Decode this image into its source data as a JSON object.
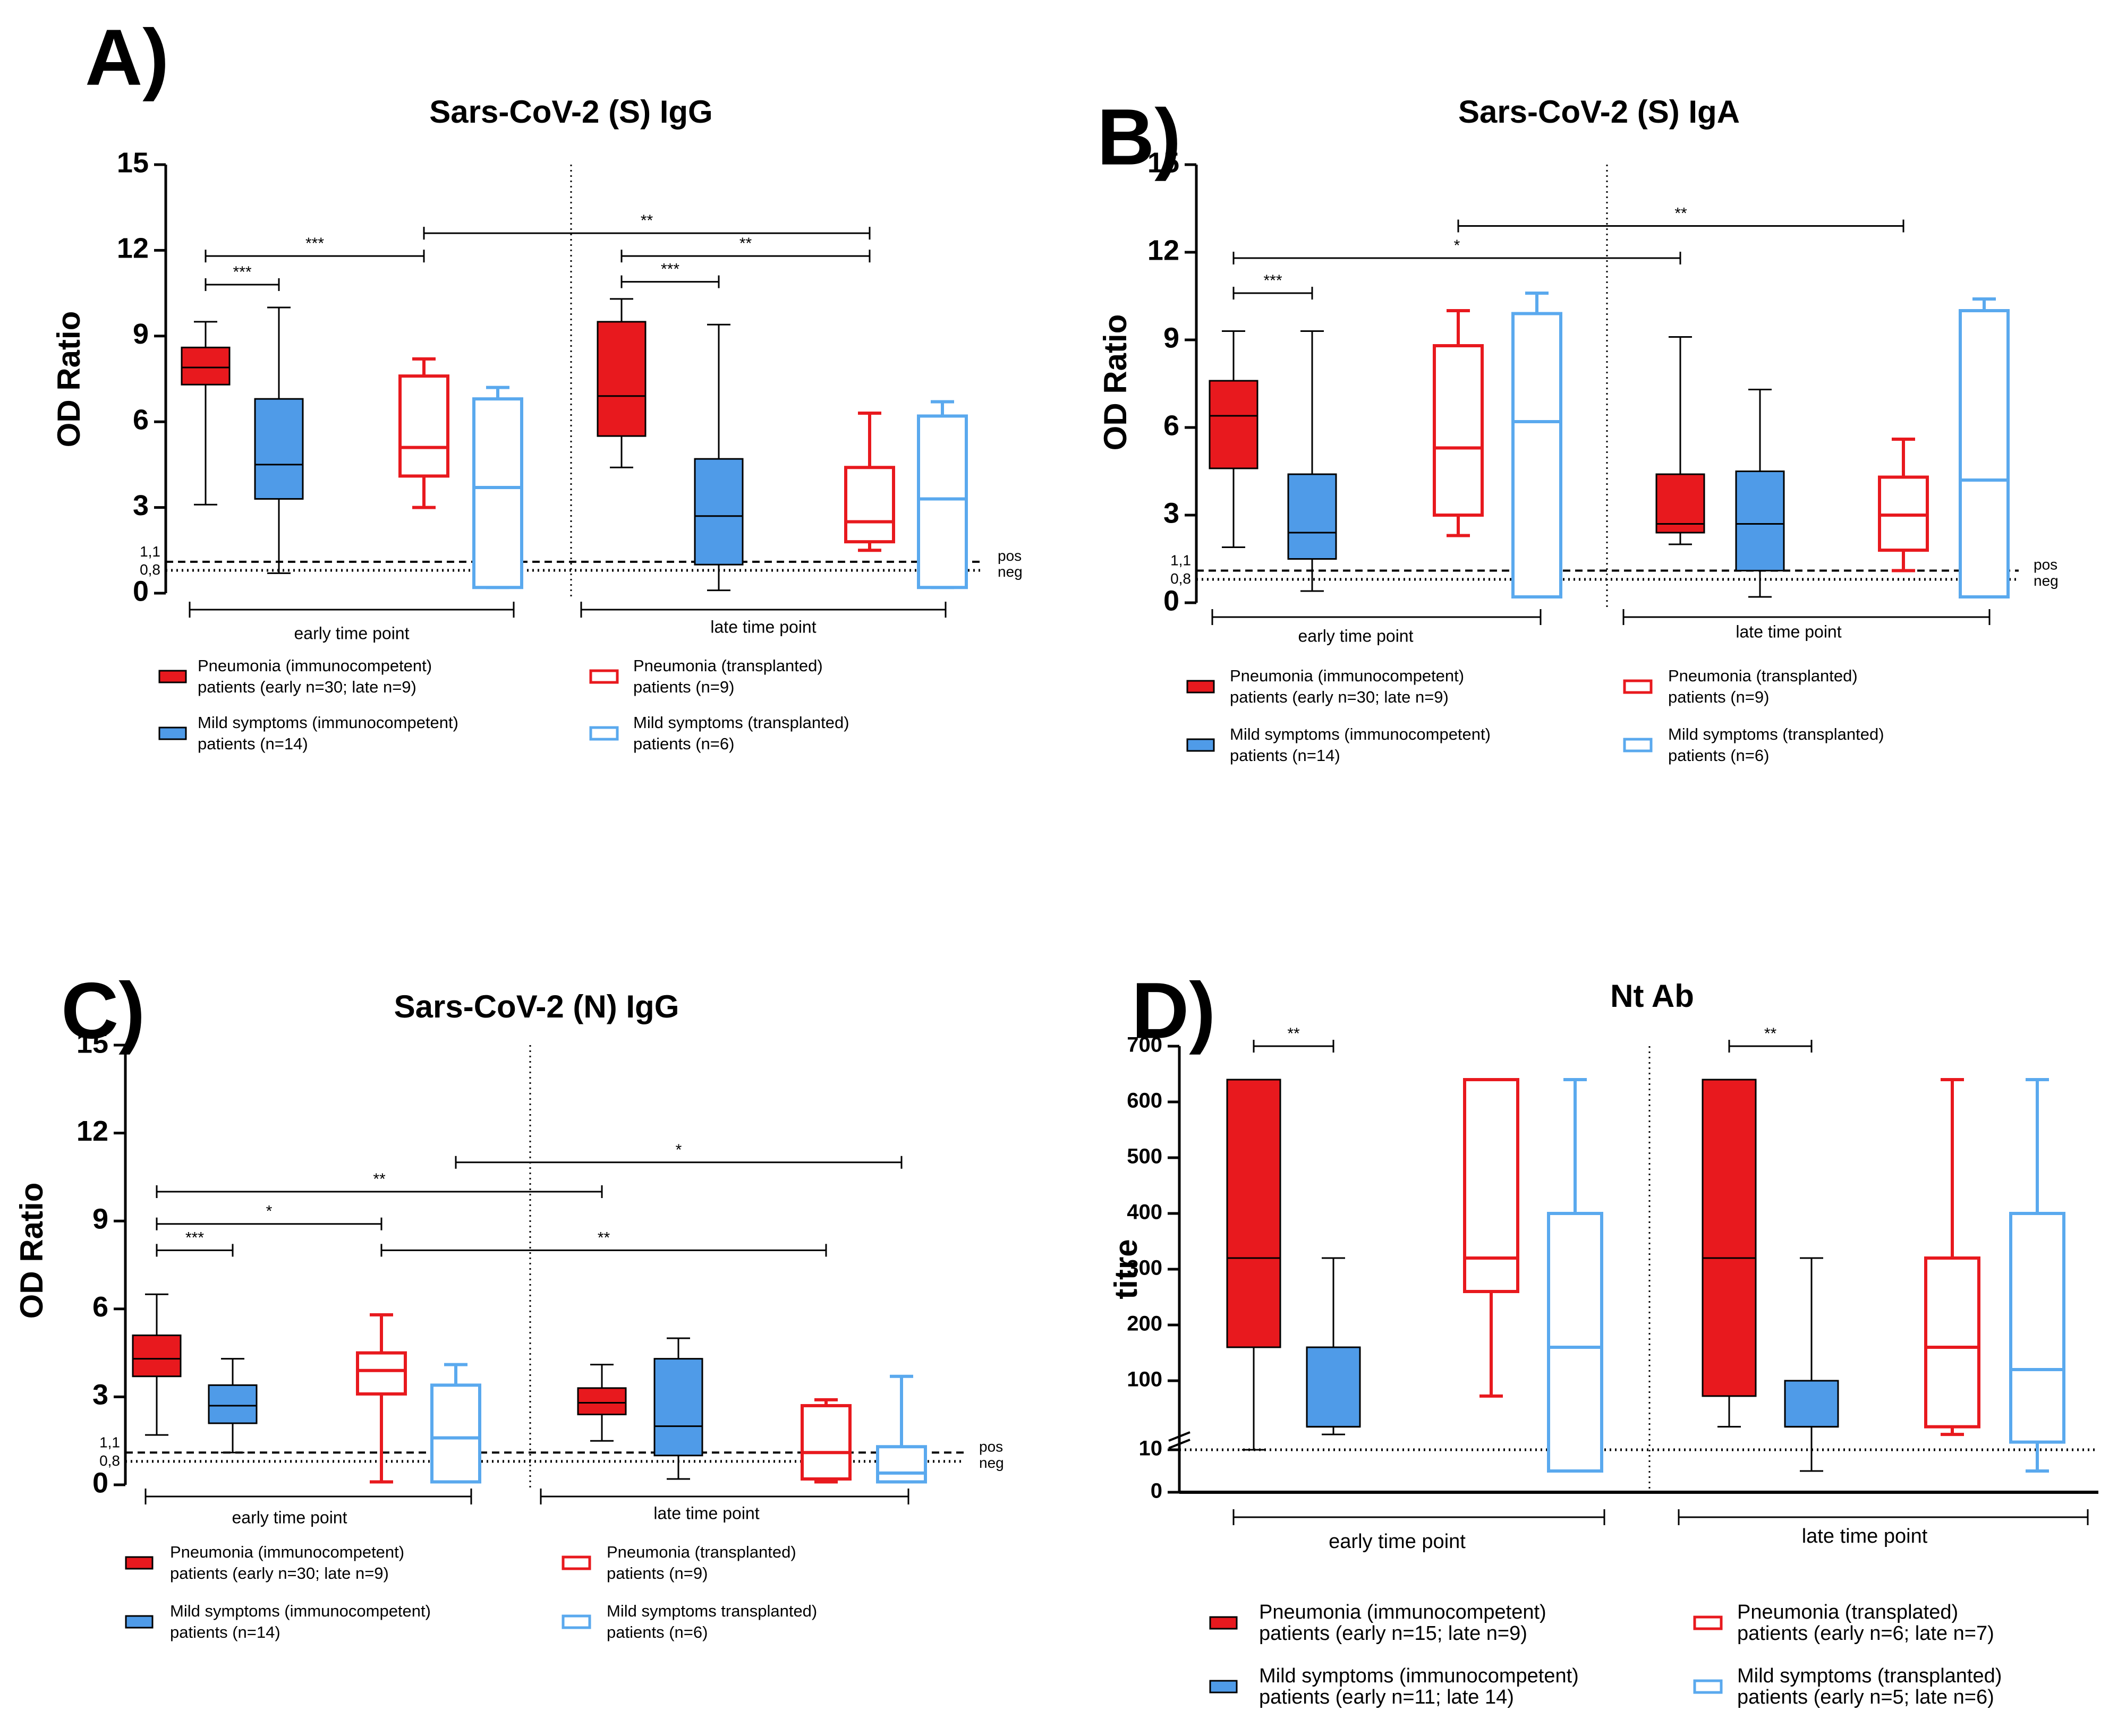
{
  "figure": {
    "colors": {
      "red": "#e8191e",
      "blue": "#4f9be8",
      "lightblue": "#5aa9ee",
      "black": "#000000"
    }
  },
  "chart_data": [
    {
      "id": "A",
      "type": "boxplot",
      "panel_label": "A)",
      "title": "Sars-CoV-2 (S) IgG",
      "ylabel": "OD Ratio",
      "ylim": [
        0,
        15
      ],
      "yticks": [
        "0",
        "3",
        "6",
        "9",
        "12",
        "15"
      ],
      "ref_lines": [
        {
          "value": 1.1,
          "label": "1,1",
          "name": "pos",
          "style": "dashed"
        },
        {
          "value": 0.8,
          "label": "0,8",
          "name": "neg",
          "style": "dotted"
        }
      ],
      "groups": [
        "early time point",
        "late time point"
      ],
      "boxes": [
        {
          "series": "Pneumonia (immunocompetent)",
          "group": "early",
          "style": "filled-red",
          "min": 3.1,
          "q1": 7.3,
          "median": 7.9,
          "q3": 8.6,
          "max": 9.5
        },
        {
          "series": "Mild symptoms (immunocompetent)",
          "group": "early",
          "style": "filled-blue",
          "min": 0.7,
          "q1": 3.3,
          "median": 4.5,
          "q3": 6.8,
          "max": 10.0
        },
        {
          "series": "Pneumonia (transplanted)",
          "group": "early",
          "style": "open-red",
          "min": 3.0,
          "q1": 4.1,
          "median": 5.1,
          "q3": 7.6,
          "max": 8.2
        },
        {
          "series": "Mild symptoms (transplanted)",
          "group": "early",
          "style": "open-blue",
          "min": 0.2,
          "q1": 0.2,
          "median": 3.7,
          "q3": 6.8,
          "max": 7.2
        },
        {
          "series": "Pneumonia (immunocompetent)",
          "group": "late",
          "style": "filled-red",
          "min": 4.4,
          "q1": 5.5,
          "median": 6.9,
          "q3": 9.5,
          "max": 10.3
        },
        {
          "series": "Mild symptoms (immunocompetent)",
          "group": "late",
          "style": "filled-blue",
          "min": 0.1,
          "q1": 1.0,
          "median": 2.7,
          "q3": 4.7,
          "max": 9.4
        },
        {
          "series": "Pneumonia (transplanted)",
          "group": "late",
          "style": "open-red",
          "min": 1.5,
          "q1": 1.8,
          "median": 2.5,
          "q3": 4.4,
          "max": 6.3
        },
        {
          "series": "Mild symptoms (transplanted)",
          "group": "late",
          "style": "open-blue",
          "min": 0.2,
          "q1": 0.2,
          "median": 3.3,
          "q3": 6.2,
          "max": 6.7
        }
      ],
      "brackets": [
        {
          "from": 0,
          "to": 1,
          "y": 10.8,
          "label": "***"
        },
        {
          "from": 0,
          "to": 2,
          "y": 11.8,
          "label": "***"
        },
        {
          "from": 2,
          "to": 6,
          "y": 12.6,
          "label": "**"
        },
        {
          "from": 4,
          "to": 5,
          "y": 10.9,
          "label": "***"
        },
        {
          "from": 4,
          "to": 6,
          "y": 11.8,
          "label": "**"
        }
      ],
      "legend": [
        {
          "style": "filled-red",
          "line1": "Pneumonia (immunocompetent)",
          "line2": "patients (early n=30; late n=9)"
        },
        {
          "style": "open-red",
          "line1": "Pneumonia (transplanted)",
          "line2": "patients (n=9)"
        },
        {
          "style": "filled-blue",
          "line1": "Mild symptoms (immunocompetent)",
          "line2": "patients (n=14)"
        },
        {
          "style": "open-blue",
          "line1": "Mild symptoms (transplanted)",
          "line2": "patients (n=6)"
        }
      ]
    },
    {
      "id": "B",
      "type": "boxplot",
      "panel_label": "B)",
      "title": "Sars-CoV-2 (S) IgA",
      "ylabel": "OD Ratio",
      "ylim": [
        0,
        15
      ],
      "yticks": [
        "0",
        "3",
        "6",
        "9",
        "12",
        "15"
      ],
      "ref_lines": [
        {
          "value": 1.1,
          "label": "1,1",
          "name": "pos",
          "style": "dashed"
        },
        {
          "value": 0.8,
          "label": "0,8",
          "name": "neg",
          "style": "dotted"
        }
      ],
      "groups": [
        "early time point",
        "late time point"
      ],
      "boxes": [
        {
          "series": "Pneumonia (immunocompetent)",
          "group": "early",
          "style": "filled-red",
          "min": 1.9,
          "q1": 4.6,
          "median": 6.4,
          "q3": 7.6,
          "max": 9.3
        },
        {
          "series": "Mild symptoms (immunocompetent)",
          "group": "early",
          "style": "filled-blue",
          "min": 0.4,
          "q1": 1.5,
          "median": 2.4,
          "q3": 4.4,
          "max": 9.3
        },
        {
          "series": "Pneumonia (transplanted)",
          "group": "early",
          "style": "open-red",
          "min": 2.3,
          "q1": 3.0,
          "median": 5.3,
          "q3": 8.8,
          "max": 10.0
        },
        {
          "series": "Mild symptoms (transplanted)",
          "group": "early",
          "style": "open-blue",
          "min": 0.2,
          "q1": 0.2,
          "median": 6.2,
          "q3": 9.9,
          "max": 10.6
        },
        {
          "series": "Pneumonia (immunocompetent)",
          "group": "late",
          "style": "filled-red",
          "min": 2.0,
          "q1": 2.4,
          "median": 2.7,
          "q3": 4.4,
          "max": 9.1
        },
        {
          "series": "Mild symptoms (immunocompetent)",
          "group": "late",
          "style": "filled-blue",
          "min": 0.2,
          "q1": 1.1,
          "median": 2.7,
          "q3": 4.5,
          "max": 7.3
        },
        {
          "series": "Pneumonia (transplanted)",
          "group": "late",
          "style": "open-red",
          "min": 1.1,
          "q1": 1.8,
          "median": 3.0,
          "q3": 4.3,
          "max": 5.6
        },
        {
          "series": "Mild symptoms (transplanted)",
          "group": "late",
          "style": "open-blue",
          "min": 0.2,
          "q1": 0.2,
          "median": 4.2,
          "q3": 10.0,
          "max": 10.4
        }
      ],
      "brackets": [
        {
          "from": 0,
          "to": 1,
          "y": 10.6,
          "label": "***"
        },
        {
          "from": 0,
          "to": 4,
          "y": 11.8,
          "label": "*"
        },
        {
          "from": 2,
          "to": 6,
          "y": 12.9,
          "label": "**"
        }
      ],
      "legend": [
        {
          "style": "filled-red",
          "line1": "Pneumonia (immunocompetent)",
          "line2": "patients (early n=30; late n=9)"
        },
        {
          "style": "open-red",
          "line1": "Pneumonia (transplanted)",
          "line2": "patients (n=9)"
        },
        {
          "style": "filled-blue",
          "line1": "Mild symptoms (immunocompetent)",
          "line2": "patients (n=14)"
        },
        {
          "style": "open-blue",
          "line1": "Mild symptoms (transplanted)",
          "line2": "patients (n=6)"
        }
      ]
    },
    {
      "id": "C",
      "type": "boxplot",
      "panel_label": "C)",
      "title": "Sars-CoV-2 (N) IgG",
      "ylabel": "OD Ratio",
      "ylim": [
        0,
        15
      ],
      "yticks": [
        "0",
        "3",
        "6",
        "9",
        "12",
        "15"
      ],
      "ref_lines": [
        {
          "value": 1.1,
          "label": "1,1",
          "name": "pos",
          "style": "dashed"
        },
        {
          "value": 0.8,
          "label": "0,8",
          "name": "neg",
          "style": "dotted"
        }
      ],
      "groups": [
        "early time point",
        "late time point"
      ],
      "boxes": [
        {
          "series": "Pneumonia (immunocompetent)",
          "group": "early",
          "style": "filled-red",
          "min": 1.7,
          "q1": 3.7,
          "median": 4.3,
          "q3": 5.1,
          "max": 6.5
        },
        {
          "series": "Mild symptoms (immunocompetent)",
          "group": "early",
          "style": "filled-blue",
          "min": 1.1,
          "q1": 2.1,
          "median": 2.7,
          "q3": 3.4,
          "max": 4.3
        },
        {
          "series": "Pneumonia (transplanted)",
          "group": "early",
          "style": "open-red",
          "min": 0.1,
          "q1": 3.1,
          "median": 3.9,
          "q3": 4.5,
          "max": 5.8
        },
        {
          "series": "Mild symptoms (transplanted)",
          "group": "early",
          "style": "open-blue",
          "min": 0.1,
          "q1": 0.1,
          "median": 1.6,
          "q3": 3.4,
          "max": 4.1
        },
        {
          "series": "Pneumonia (immunocompetent)",
          "group": "late",
          "style": "filled-red",
          "min": 1.5,
          "q1": 2.4,
          "median": 2.8,
          "q3": 3.3,
          "max": 4.1
        },
        {
          "series": "Mild symptoms (immunocompetent)",
          "group": "late",
          "style": "filled-blue",
          "min": 0.2,
          "q1": 1.0,
          "median": 2.0,
          "q3": 4.3,
          "max": 5.0
        },
        {
          "series": "Pneumonia (transplanted)",
          "group": "late",
          "style": "open-red",
          "min": 0.1,
          "q1": 0.2,
          "median": 1.1,
          "q3": 2.7,
          "max": 2.9
        },
        {
          "series": "Mild symptoms (transplanted)",
          "group": "late",
          "style": "open-blue",
          "min": 0.1,
          "q1": 0.1,
          "median": 0.4,
          "q3": 1.3,
          "max": 3.7
        }
      ],
      "brackets": [
        {
          "from": 0,
          "to": 1,
          "y": 8.0,
          "label": "***"
        },
        {
          "from": 0,
          "to": 2,
          "y": 8.9,
          "label": "*"
        },
        {
          "from": 0,
          "to": 4,
          "y": 10.0,
          "label": "**"
        },
        {
          "from": 2,
          "to": 6,
          "y": 8.0,
          "label": "**"
        },
        {
          "from": 3,
          "to": 7,
          "y": 11.0,
          "label": "*"
        }
      ],
      "legend": [
        {
          "style": "filled-red",
          "line1": "Pneumonia (immunocompetent)",
          "line2": "patients (early n=30; late n=9)"
        },
        {
          "style": "open-red",
          "line1": "Pneumonia (transplanted)",
          "line2": "patients (n=9)"
        },
        {
          "style": "filled-blue",
          "line1": "Mild symptoms (immunocompetent)",
          "line2": "patients (n=14)"
        },
        {
          "style": "open-blue",
          "line1": "Mild symptoms transplanted)",
          "line2": "patients (n=6)"
        }
      ]
    },
    {
      "id": "D",
      "type": "boxplot",
      "panel_label": "D)",
      "title": "Nt Ab",
      "ylabel": "titre",
      "yscale": "broken",
      "ylim": [
        0,
        700
      ],
      "yticks": [
        "0",
        "10",
        "100",
        "200",
        "300",
        "400",
        "500",
        "600",
        "700"
      ],
      "ref_lines": [
        {
          "value": 10,
          "label": "",
          "name": "",
          "style": "dotted"
        }
      ],
      "groups": [
        "early time point",
        "late time point"
      ],
      "boxes": [
        {
          "series": "Pneumonia (immunocompetent)",
          "group": "early",
          "style": "filled-red",
          "min": 10,
          "q1": 160,
          "median": 320,
          "q3": 640,
          "max": 640
        },
        {
          "series": "Mild symptoms (immunocompetent)",
          "group": "early",
          "style": "filled-blue",
          "min": 30,
          "q1": 40,
          "median": 40,
          "q3": 160,
          "max": 320
        },
        {
          "series": "Pneumonia (transplanted)",
          "group": "early",
          "style": "open-red",
          "min": 80,
          "q1": 260,
          "median": 320,
          "q3": 640,
          "max": 640
        },
        {
          "series": "Mild symptoms (transplanted)",
          "group": "early",
          "style": "open-blue",
          "min": 5,
          "q1": 5,
          "median": 160,
          "q3": 400,
          "max": 640
        },
        {
          "series": "Pneumonia (immunocompetent)",
          "group": "late",
          "style": "filled-red",
          "min": 40,
          "q1": 80,
          "median": 320,
          "q3": 640,
          "max": 640
        },
        {
          "series": "Mild symptoms (immunocompetent)",
          "group": "late",
          "style": "filled-blue",
          "min": 5,
          "q1": 40,
          "median": 40,
          "q3": 100,
          "max": 320
        },
        {
          "series": "Pneumonia (transplanted)",
          "group": "late",
          "style": "open-red",
          "min": 30,
          "q1": 40,
          "median": 160,
          "q3": 320,
          "max": 640
        },
        {
          "series": "Mild symptoms (transplanted)",
          "group": "late",
          "style": "open-blue",
          "min": 5,
          "q1": 20,
          "median": 120,
          "q3": 400,
          "max": 640
        }
      ],
      "brackets": [
        {
          "from": 0,
          "to": 1,
          "y": 700,
          "label": "**"
        },
        {
          "from": 4,
          "to": 5,
          "y": 700,
          "label": "**"
        }
      ],
      "legend": [
        {
          "style": "filled-red",
          "line1": "Pneumonia (immunocompetent)",
          "line2": "patients (early n=15; late n=9)"
        },
        {
          "style": "open-red",
          "line1": "Pneumonia (transplated)",
          "line2": "patients (early n=6; late n=7)"
        },
        {
          "style": "filled-blue",
          "line1": "Mild symptoms (immunocompetent)",
          "line2": "patients (early n=11; late 14)"
        },
        {
          "style": "open-blue",
          "line1": "Mild symptoms (transplanted)",
          "line2": "patients (early n=5; late n=6)"
        }
      ]
    }
  ]
}
